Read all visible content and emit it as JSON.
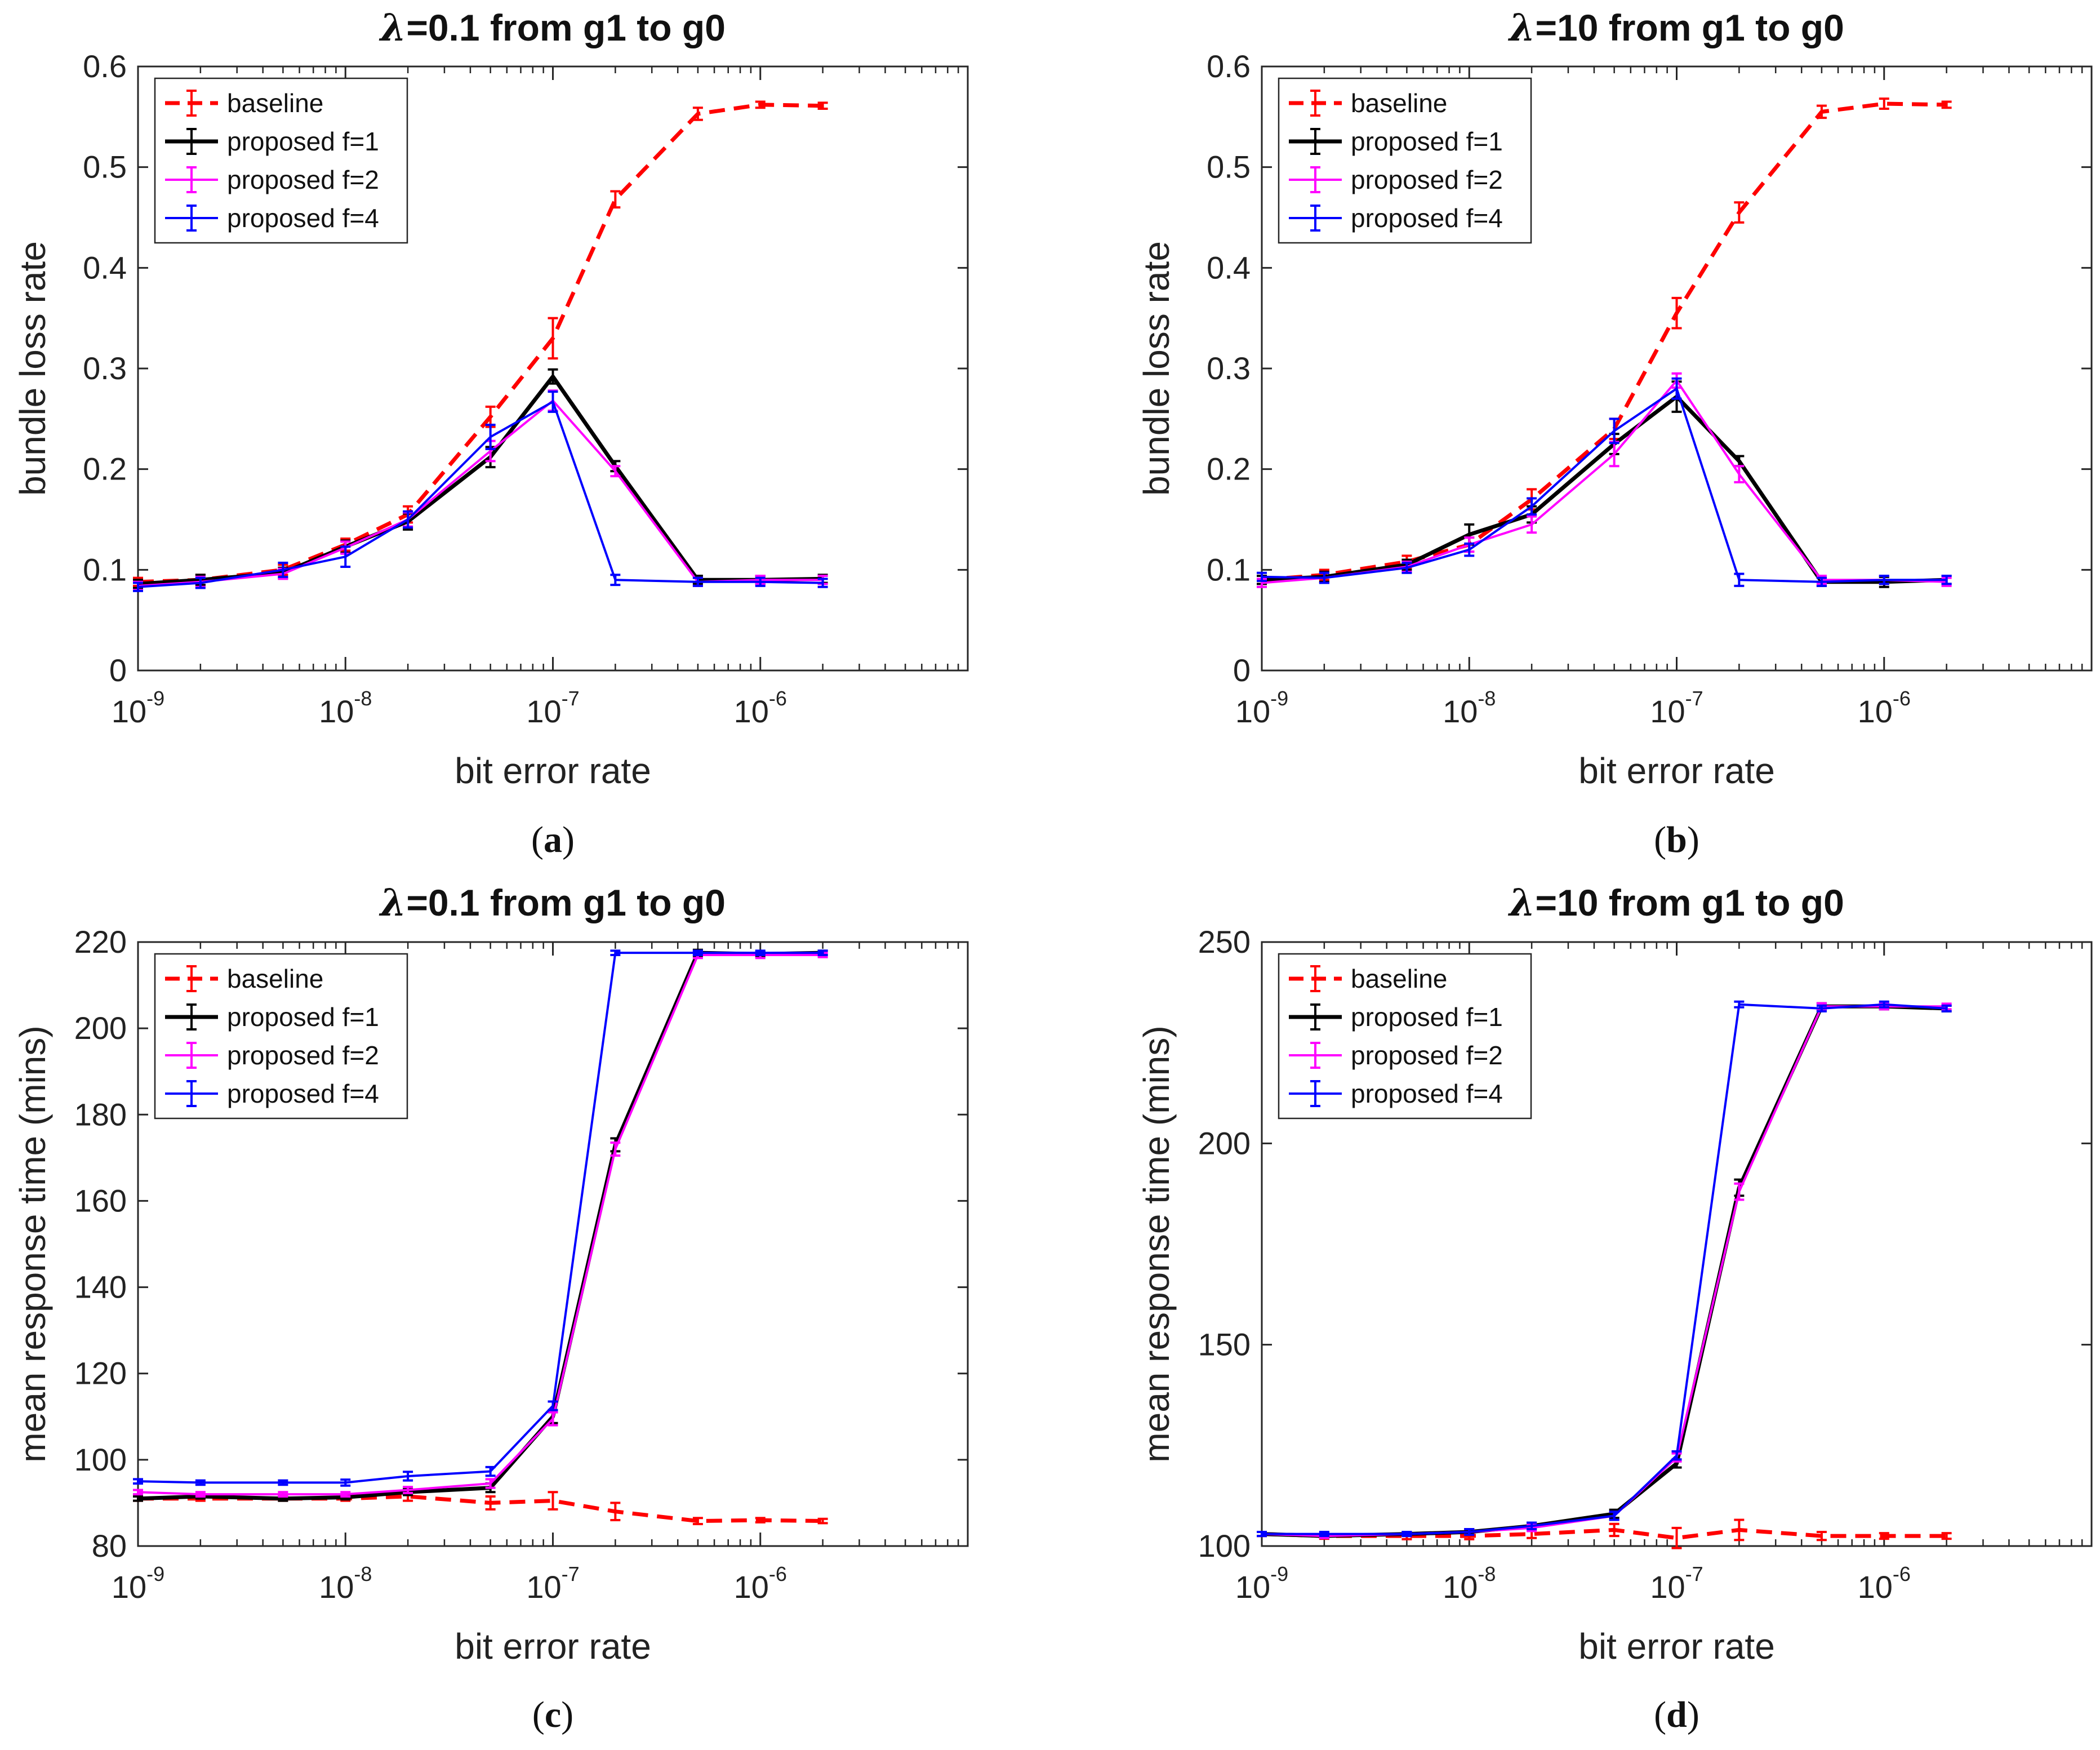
{
  "chart_data": [
    {
      "type": "line",
      "caption": "a",
      "title_lambda": "λ",
      "title_rest": "=0.1 from g1 to g0",
      "xlabel": "bit error rate",
      "ylabel": "bundle loss rate",
      "xscale": "log",
      "xlim": [
        1e-09,
        1e-05
      ],
      "ylim": [
        0,
        0.6
      ],
      "yticks": [
        "0",
        "0.1",
        "0.2",
        "0.3",
        "0.4",
        "0.5",
        "0.6"
      ],
      "xtick_base": "10",
      "xtick_exponents": [
        "-9",
        "-8",
        "-7",
        "-6"
      ],
      "x": [
        1e-09,
        2e-09,
        5e-09,
        1e-08,
        2e-08,
        5e-08,
        1e-07,
        2e-07,
        5e-07,
        1e-06,
        2e-06
      ],
      "legend_position": "top-left",
      "series": [
        {
          "name": "baseline",
          "values": [
            0.088,
            0.09,
            0.1,
            0.125,
            0.155,
            0.252,
            0.33,
            0.468,
            0.553,
            0.562,
            0.561
          ],
          "errors": [
            0.004,
            0.005,
            0.005,
            0.006,
            0.008,
            0.01,
            0.02,
            0.008,
            0.006,
            0.003,
            0.003
          ]
        },
        {
          "name": "proposed f=1",
          "values": [
            0.086,
            0.09,
            0.097,
            0.123,
            0.148,
            0.212,
            0.292,
            0.203,
            0.09,
            0.09,
            0.091
          ],
          "errors": [
            0.004,
            0.005,
            0.005,
            0.006,
            0.008,
            0.01,
            0.007,
            0.005,
            0.004,
            0.004,
            0.004
          ]
        },
        {
          "name": "proposed f=2",
          "values": [
            0.084,
            0.088,
            0.096,
            0.122,
            0.15,
            0.218,
            0.268,
            0.198,
            0.088,
            0.09,
            0.09
          ],
          "errors": [
            0.004,
            0.005,
            0.005,
            0.006,
            0.007,
            0.01,
            0.01,
            0.005,
            0.004,
            0.004,
            0.004
          ]
        },
        {
          "name": "proposed f=4",
          "values": [
            0.083,
            0.087,
            0.1,
            0.113,
            0.15,
            0.232,
            0.267,
            0.09,
            0.088,
            0.088,
            0.087
          ],
          "errors": [
            0.004,
            0.005,
            0.007,
            0.01,
            0.008,
            0.012,
            0.01,
            0.005,
            0.004,
            0.004,
            0.004
          ]
        }
      ]
    },
    {
      "type": "line",
      "caption": "b",
      "title_lambda": "λ",
      "title_rest": "=10 from g1 to g0",
      "xlabel": "bit error rate",
      "ylabel": "bundle loss rate",
      "xscale": "log",
      "xlim": [
        1e-09,
        1e-05
      ],
      "ylim": [
        0,
        0.6
      ],
      "yticks": [
        "0",
        "0.1",
        "0.2",
        "0.3",
        "0.4",
        "0.5",
        "0.6"
      ],
      "xtick_base": "10",
      "xtick_exponents": [
        "-9",
        "-8",
        "-7",
        "-6"
      ],
      "x": [
        1e-09,
        2e-09,
        5e-09,
        1e-08,
        2e-08,
        5e-08,
        1e-07,
        2e-07,
        5e-07,
        1e-06,
        2e-06
      ],
      "legend_position": "top-left",
      "series": [
        {
          "name": "baseline",
          "values": [
            0.09,
            0.095,
            0.108,
            0.125,
            0.17,
            0.24,
            0.355,
            0.455,
            0.555,
            0.563,
            0.562
          ],
          "errors": [
            0.004,
            0.005,
            0.006,
            0.007,
            0.01,
            0.01,
            0.015,
            0.01,
            0.006,
            0.005,
            0.003
          ]
        },
        {
          "name": "proposed f=1",
          "values": [
            0.09,
            0.093,
            0.105,
            0.135,
            0.155,
            0.225,
            0.272,
            0.208,
            0.088,
            0.088,
            0.09
          ],
          "errors": [
            0.004,
            0.005,
            0.005,
            0.01,
            0.008,
            0.01,
            0.015,
            0.005,
            0.004,
            0.005,
            0.004
          ]
        },
        {
          "name": "proposed f=2",
          "values": [
            0.087,
            0.092,
            0.103,
            0.125,
            0.145,
            0.215,
            0.288,
            0.195,
            0.09,
            0.09,
            0.088
          ],
          "errors": [
            0.004,
            0.005,
            0.005,
            0.007,
            0.008,
            0.012,
            0.007,
            0.008,
            0.004,
            0.004,
            0.004
          ]
        },
        {
          "name": "proposed f=4",
          "values": [
            0.093,
            0.092,
            0.102,
            0.12,
            0.163,
            0.238,
            0.28,
            0.09,
            0.088,
            0.09,
            0.09
          ],
          "errors": [
            0.004,
            0.005,
            0.005,
            0.006,
            0.008,
            0.012,
            0.01,
            0.006,
            0.004,
            0.004,
            0.004
          ]
        }
      ]
    },
    {
      "type": "line",
      "caption": "c",
      "title_lambda": "λ",
      "title_rest": "=0.1 from g1 to g0",
      "xlabel": "bit error rate",
      "ylabel": "mean response time (mins)",
      "xscale": "log",
      "xlim": [
        1e-09,
        1e-05
      ],
      "ylim": [
        80,
        220
      ],
      "yticks": [
        "80",
        "100",
        "120",
        "140",
        "160",
        "180",
        "200",
        "220"
      ],
      "xtick_base": "10",
      "xtick_exponents": [
        "-9",
        "-8",
        "-7",
        "-6"
      ],
      "x": [
        1e-09,
        2e-09,
        5e-09,
        1e-08,
        2e-08,
        5e-08,
        1e-07,
        2e-07,
        5e-07,
        1e-06,
        2e-06
      ],
      "legend_position": "top-left",
      "series": [
        {
          "name": "baseline",
          "values": [
            91,
            91,
            91,
            91,
            91.5,
            90,
            90.5,
            88,
            85.8,
            86,
            85.8
          ],
          "errors": [
            0.5,
            0.5,
            0.5,
            0.5,
            1,
            1.5,
            2,
            2,
            0.7,
            0.5,
            0.5
          ]
        },
        {
          "name": "proposed f=1",
          "values": [
            91,
            91.5,
            91,
            91.3,
            92.5,
            93.5,
            110,
            173,
            217.5,
            217.2,
            217.5
          ],
          "errors": [
            0.5,
            0.5,
            0.5,
            0.5,
            0.7,
            1,
            1.5,
            1.5,
            0.7,
            0.5,
            0.5
          ]
        },
        {
          "name": "proposed f=2",
          "values": [
            92.5,
            92,
            92,
            92,
            93,
            94.5,
            109.5,
            172,
            217,
            217,
            217
          ],
          "errors": [
            0.5,
            0.5,
            0.5,
            0.5,
            0.7,
            1,
            1.5,
            1.5,
            0.7,
            0.7,
            0.5
          ]
        },
        {
          "name": "proposed f=4",
          "values": [
            95,
            94.7,
            94.7,
            94.7,
            96.2,
            97.3,
            112.5,
            217.5,
            217.5,
            217.5,
            217.5
          ],
          "errors": [
            0.5,
            0.5,
            0.5,
            0.7,
            1,
            1,
            1,
            0.5,
            0.5,
            0.5,
            0.5
          ]
        }
      ]
    },
    {
      "type": "line",
      "caption": "d",
      "title_lambda": "λ",
      "title_rest": "=10 from g1 to g0",
      "xlabel": "bit error rate",
      "ylabel": "mean response time (mins)",
      "xscale": "log",
      "xlim": [
        1e-09,
        1e-05
      ],
      "ylim": [
        100,
        250
      ],
      "yticks": [
        "100",
        "150",
        "200",
        "250"
      ],
      "xtick_base": "10",
      "xtick_exponents": [
        "-9",
        "-8",
        "-7",
        "-6"
      ],
      "x": [
        1e-09,
        2e-09,
        5e-09,
        1e-08,
        2e-08,
        5e-08,
        1e-07,
        2e-07,
        5e-07,
        1e-06,
        2e-06
      ],
      "legend_position": "top-left",
      "series": [
        {
          "name": "baseline",
          "values": [
            103,
            102.5,
            102.5,
            102.5,
            103,
            104,
            102,
            104,
            102.5,
            102.5,
            102.5
          ],
          "errors": [
            0.5,
            0.7,
            0.8,
            0.8,
            1,
            1.5,
            2.5,
            2.5,
            1,
            0.7,
            0.7
          ]
        },
        {
          "name": "proposed f=1",
          "values": [
            103,
            102.5,
            103,
            103.5,
            105,
            108,
            120.5,
            189,
            234,
            234,
            233.5
          ],
          "errors": [
            0.5,
            0.5,
            0.5,
            0.7,
            0.8,
            1,
            1,
            2,
            0.8,
            0.7,
            0.7
          ]
        },
        {
          "name": "proposed f=2",
          "values": [
            103,
            102.5,
            103,
            103.5,
            104.5,
            107.5,
            122,
            188,
            234,
            234,
            234
          ],
          "errors": [
            0.5,
            0.5,
            0.5,
            0.7,
            0.8,
            1,
            1,
            2,
            0.8,
            0.7,
            0.7
          ]
        },
        {
          "name": "proposed f=4",
          "values": [
            103,
            103,
            103,
            103.5,
            105,
            107.5,
            122.5,
            234.5,
            233.5,
            234.5,
            233.5
          ],
          "errors": [
            0.5,
            0.5,
            0.5,
            0.7,
            0.8,
            1,
            1,
            0.7,
            0.7,
            0.7,
            0.7
          ]
        }
      ]
    }
  ]
}
